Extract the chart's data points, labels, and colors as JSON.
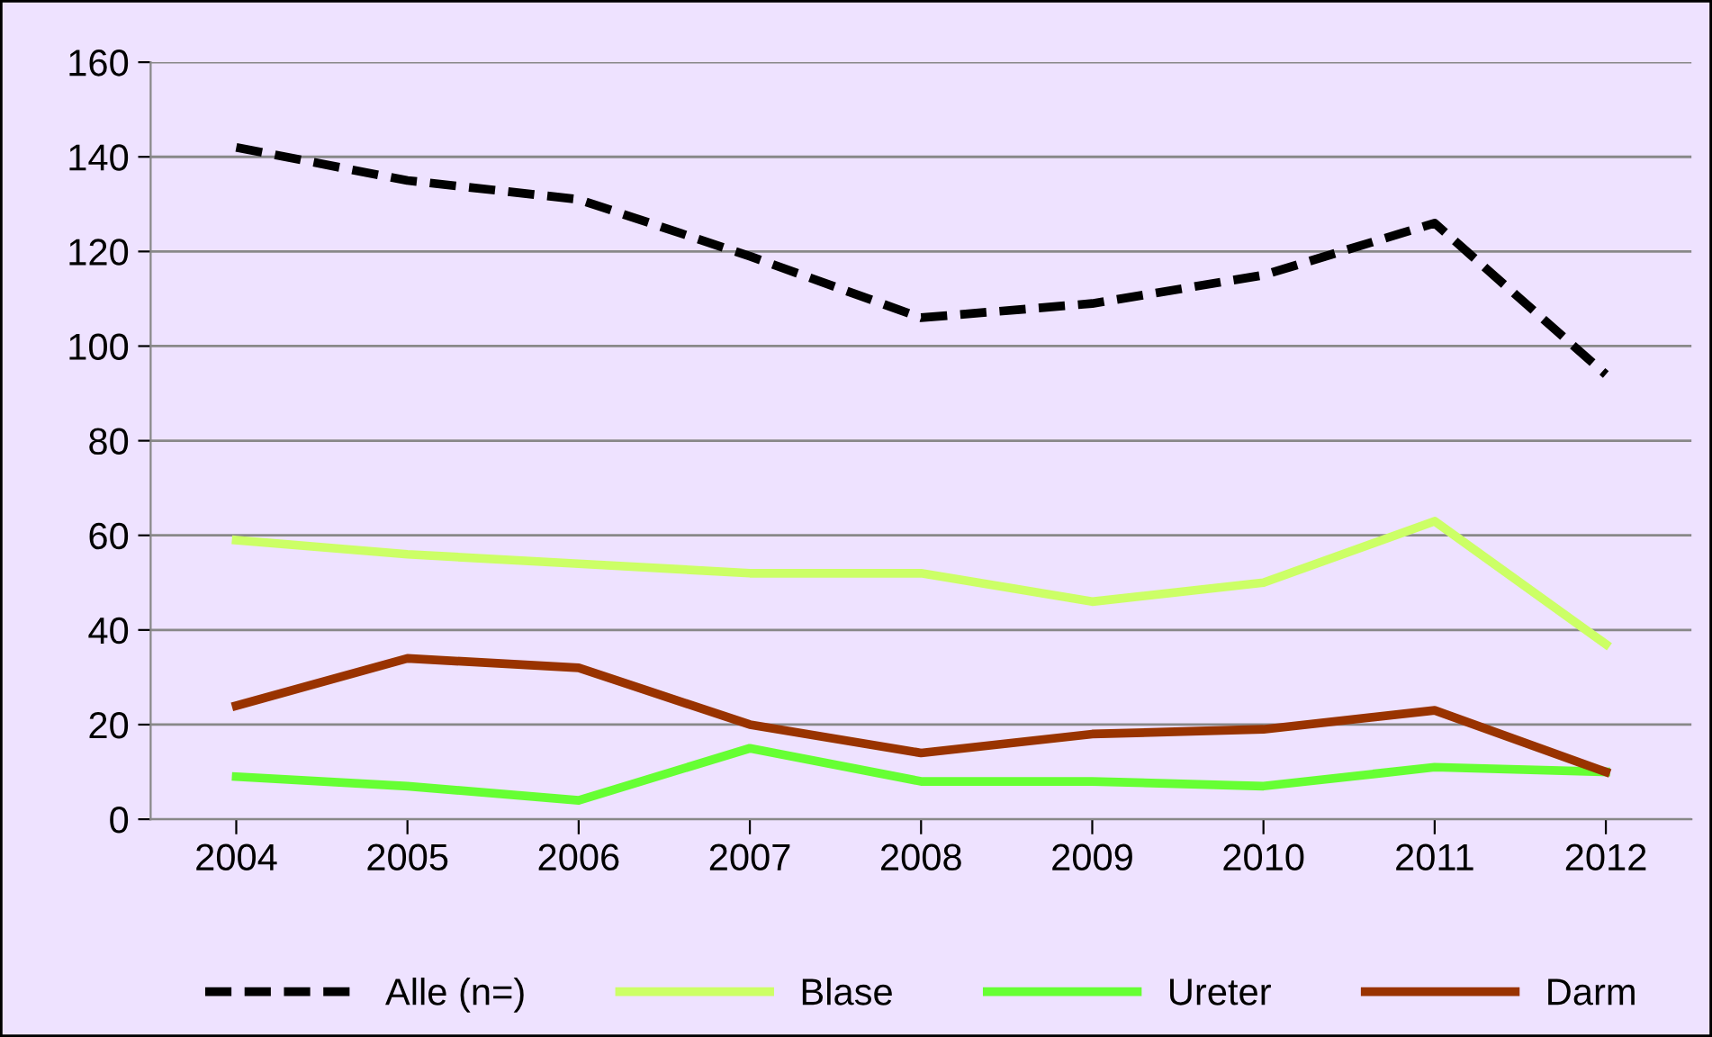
{
  "chart_data": {
    "type": "line",
    "categories": [
      "2004",
      "2005",
      "2006",
      "2007",
      "2008",
      "2009",
      "2010",
      "2011",
      "2012"
    ],
    "series": [
      {
        "name": "Alle (n=)",
        "color": "#000000",
        "line_style": "dashed",
        "values": [
          142,
          135,
          131,
          119,
          106,
          109,
          115,
          126,
          94
        ]
      },
      {
        "name": "Blase",
        "color": "#ccff66",
        "line_style": "solid",
        "values": [
          59,
          56,
          54,
          52,
          52,
          46,
          50,
          63,
          37
        ]
      },
      {
        "name": "Ureter",
        "color": "#66ff33",
        "line_style": "solid",
        "values": [
          9,
          7,
          4,
          15,
          8,
          8,
          7,
          11,
          10
        ]
      },
      {
        "name": "Darm",
        "color": "#993300",
        "line_style": "solid",
        "values": [
          24,
          34,
          32,
          20,
          14,
          18,
          19,
          23,
          10
        ]
      }
    ],
    "ylim": [
      0,
      160
    ],
    "yticks": [
      0,
      20,
      40,
      60,
      80,
      100,
      120,
      140,
      160
    ],
    "grid": "y",
    "legend": "bottom",
    "marker": "none"
  }
}
